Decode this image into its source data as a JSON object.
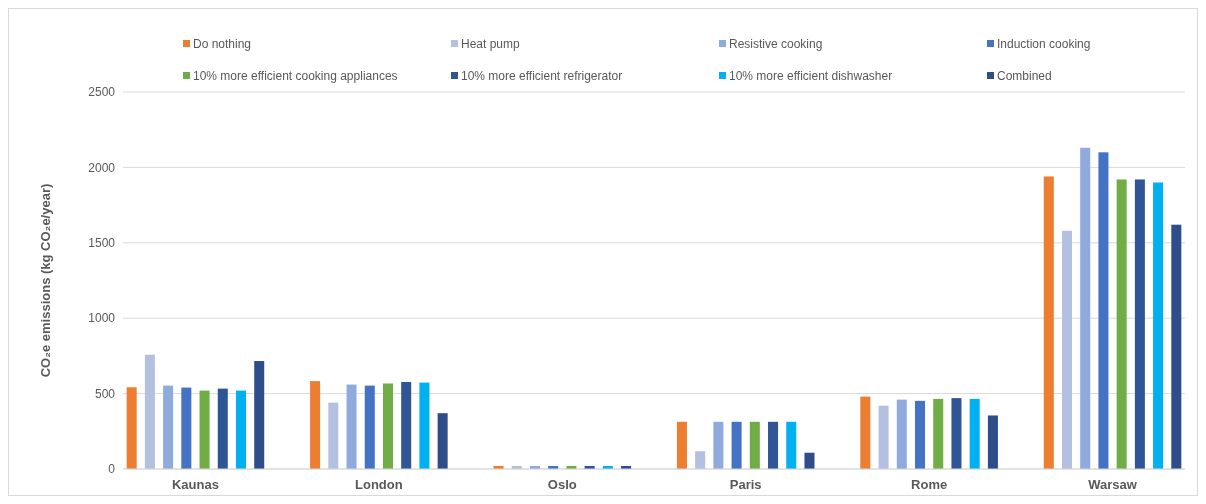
{
  "chart_data": {
    "type": "bar",
    "ylabel": "CO₂e emissions (kg CO₂e/year)",
    "categories": [
      "Kaunas",
      "London",
      "Oslo",
      "Paris",
      "Rome",
      "Warsaw"
    ],
    "series": [
      {
        "name": "Do nothing",
        "color": "#ed7d31",
        "values": [
          542,
          583,
          20,
          313,
          480,
          1940
        ]
      },
      {
        "name": "Heat pump",
        "color": "#b4c0e0",
        "values": [
          758,
          440,
          20,
          118,
          420,
          1580
        ]
      },
      {
        "name": "Resistive cooking",
        "color": "#8faadc",
        "values": [
          553,
          560,
          20,
          313,
          460,
          2130
        ]
      },
      {
        "name": "Induction cooking",
        "color": "#4472c4",
        "values": [
          540,
          553,
          20,
          313,
          452,
          2100
        ]
      },
      {
        "name": "10% more efficient cooking appliances",
        "color": "#70ad47",
        "values": [
          520,
          567,
          20,
          313,
          465,
          1920
        ]
      },
      {
        "name": "10% more efficient refrigerator",
        "color": "#2f5597",
        "values": [
          533,
          577,
          20,
          313,
          470,
          1920
        ]
      },
      {
        "name": "10% more efficient dishwasher",
        "color": "#00b0f0",
        "values": [
          520,
          573,
          20,
          313,
          465,
          1900
        ]
      },
      {
        "name": "Combined",
        "color": "#2e4d8a",
        "values": [
          716,
          370,
          20,
          108,
          355,
          1620
        ]
      }
    ],
    "ylim": [
      0,
      2500
    ],
    "yticks": [
      0,
      500,
      1000,
      1500,
      2000,
      2500
    ],
    "grid": "y",
    "legend": "top"
  }
}
